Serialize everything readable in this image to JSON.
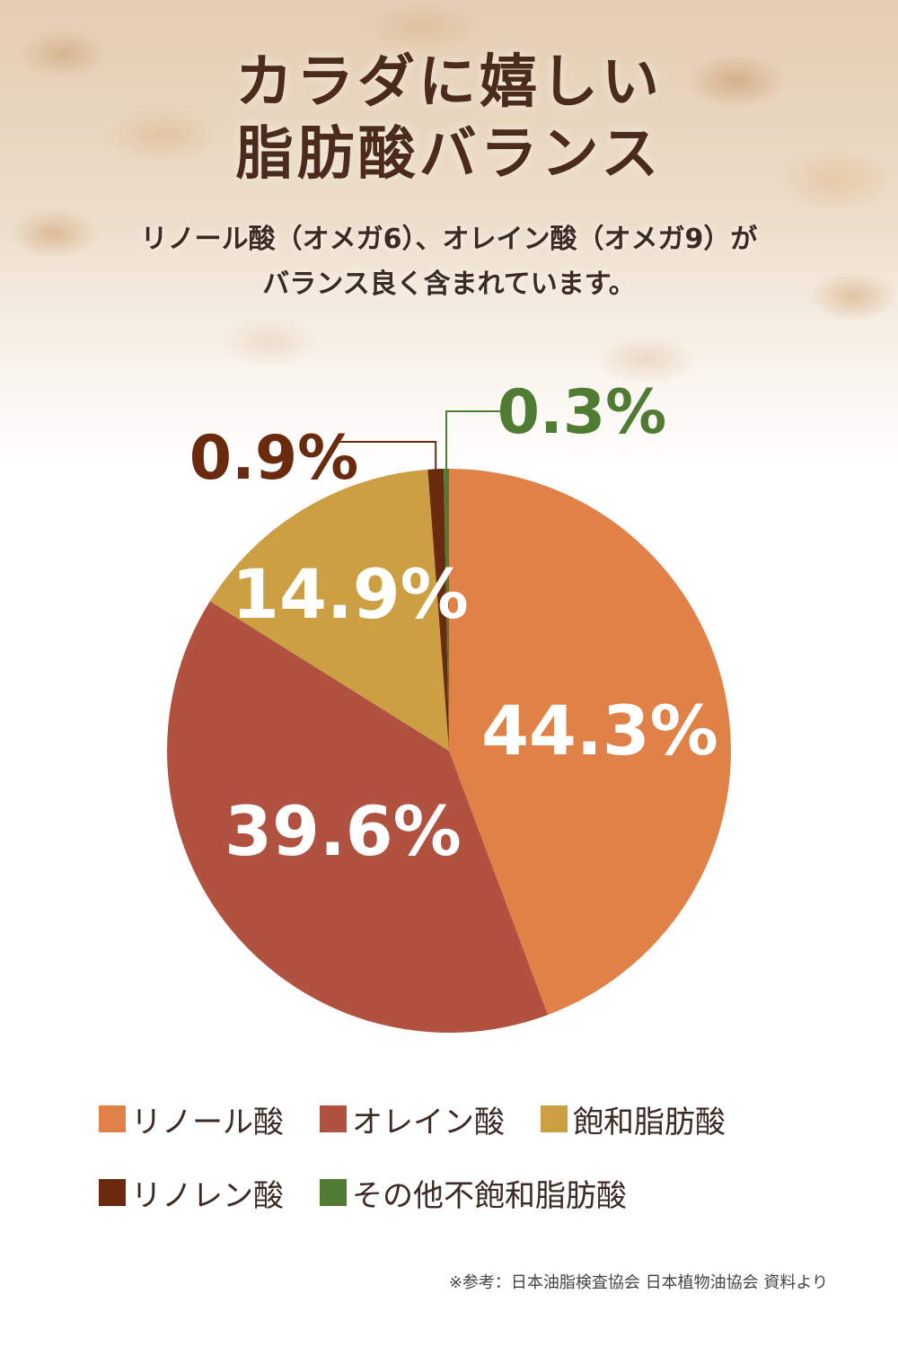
{
  "header": {
    "title_line1": "カラダに嬉しい",
    "title_line2": "脂肪酸バランス",
    "subtitle_line1": "リノール酸（オメガ6）、オレイン酸（オメガ9）が",
    "subtitle_line2": "バランス良く含まれています。"
  },
  "chart_data": {
    "type": "pie",
    "title": "",
    "series": [
      {
        "name": "リノール酸",
        "value": 44.3,
        "label": "44.3%",
        "color": "#e08248",
        "text_color": "#ffffff"
      },
      {
        "name": "オレイン酸",
        "value": 39.6,
        "label": "39.6%",
        "color": "#b15241",
        "text_color": "#ffffff"
      },
      {
        "name": "飽和脂肪酸",
        "value": 14.9,
        "label": "14.9%",
        "color": "#cd9f43",
        "text_color": "#ffffff"
      },
      {
        "name": "リノレン酸",
        "value": 0.9,
        "label": "0.9%",
        "color": "#6a2a0e",
        "text_color": "#6a2a0e"
      },
      {
        "name": "その他不飽和脂肪酸",
        "value": 0.3,
        "label": "0.3%",
        "color": "#4f7c32",
        "text_color": "#4f7c32"
      }
    ],
    "legend_placement": "bottom"
  },
  "legend": {
    "row1": [
      {
        "label": "リノール酸",
        "color": "#e08248"
      },
      {
        "label": "オレイン酸",
        "color": "#b15241"
      },
      {
        "label": "飽和脂肪酸",
        "color": "#cd9f43"
      }
    ],
    "row2": [
      {
        "label": "リノレン酸",
        "color": "#6a2a0e"
      },
      {
        "label": "その他不飽和脂肪酸",
        "color": "#4f7c32"
      }
    ]
  },
  "footer": {
    "source": "※参考：日本油脂検査協会 日本植物油協会 資料より"
  }
}
